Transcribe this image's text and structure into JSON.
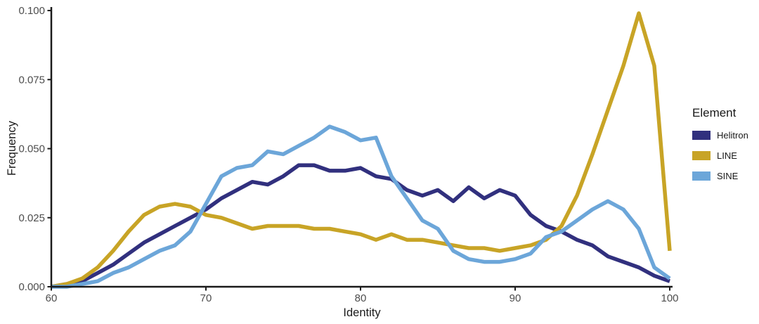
{
  "chart_data": {
    "type": "line",
    "title": "",
    "xlabel": "Identity",
    "ylabel": "Frequency",
    "xlim": [
      60,
      100
    ],
    "ylim": [
      0,
      0.1
    ],
    "grid": false,
    "background": "#ffffff",
    "axis_color": "#1a1a1a",
    "tick_label_color": "#4d4d4d",
    "x_ticks": {
      "values": [
        60,
        70,
        80,
        90,
        100
      ],
      "labels": [
        "60",
        "70",
        "80",
        "90",
        "100"
      ]
    },
    "y_ticks": {
      "values": [
        0,
        0.025,
        0.05,
        0.075,
        0.1
      ],
      "labels": [
        "0.000",
        "0.025",
        "0.050",
        "0.075",
        "0.100"
      ]
    },
    "legend": {
      "title": "Element",
      "position": "right"
    },
    "x": [
      60,
      61,
      62,
      63,
      64,
      65,
      66,
      67,
      68,
      69,
      70,
      71,
      72,
      73,
      74,
      75,
      76,
      77,
      78,
      79,
      80,
      81,
      82,
      83,
      84,
      85,
      86,
      87,
      88,
      89,
      90,
      91,
      92,
      93,
      94,
      95,
      96,
      97,
      98,
      99,
      100
    ],
    "series": [
      {
        "name": "Helitron",
        "color": "#31307E",
        "values": [
          0.0,
          0.001,
          0.002,
          0.005,
          0.008,
          0.012,
          0.016,
          0.019,
          0.022,
          0.025,
          0.028,
          0.032,
          0.035,
          0.038,
          0.037,
          0.04,
          0.044,
          0.044,
          0.042,
          0.042,
          0.043,
          0.04,
          0.039,
          0.035,
          0.033,
          0.035,
          0.031,
          0.036,
          0.032,
          0.035,
          0.033,
          0.026,
          0.022,
          0.02,
          0.017,
          0.015,
          0.011,
          0.009,
          0.007,
          0.004,
          0.002
        ]
      },
      {
        "name": "LINE",
        "color": "#C8A426",
        "values": [
          0.0,
          0.001,
          0.003,
          0.007,
          0.013,
          0.02,
          0.026,
          0.029,
          0.03,
          0.029,
          0.026,
          0.025,
          0.023,
          0.021,
          0.022,
          0.022,
          0.022,
          0.021,
          0.021,
          0.02,
          0.019,
          0.017,
          0.019,
          0.017,
          0.017,
          0.016,
          0.015,
          0.014,
          0.014,
          0.013,
          0.014,
          0.015,
          0.017,
          0.022,
          0.033,
          0.048,
          0.064,
          0.08,
          0.099,
          0.08,
          0.013
        ]
      },
      {
        "name": "SINE",
        "color": "#6CA6D9",
        "values": [
          0.0,
          0.0,
          0.001,
          0.002,
          0.005,
          0.007,
          0.01,
          0.013,
          0.015,
          0.02,
          0.03,
          0.04,
          0.043,
          0.044,
          0.049,
          0.048,
          0.051,
          0.054,
          0.058,
          0.056,
          0.053,
          0.054,
          0.04,
          0.032,
          0.024,
          0.021,
          0.013,
          0.01,
          0.009,
          0.009,
          0.01,
          0.012,
          0.018,
          0.02,
          0.024,
          0.028,
          0.031,
          0.028,
          0.021,
          0.007,
          0.003
        ]
      }
    ]
  }
}
